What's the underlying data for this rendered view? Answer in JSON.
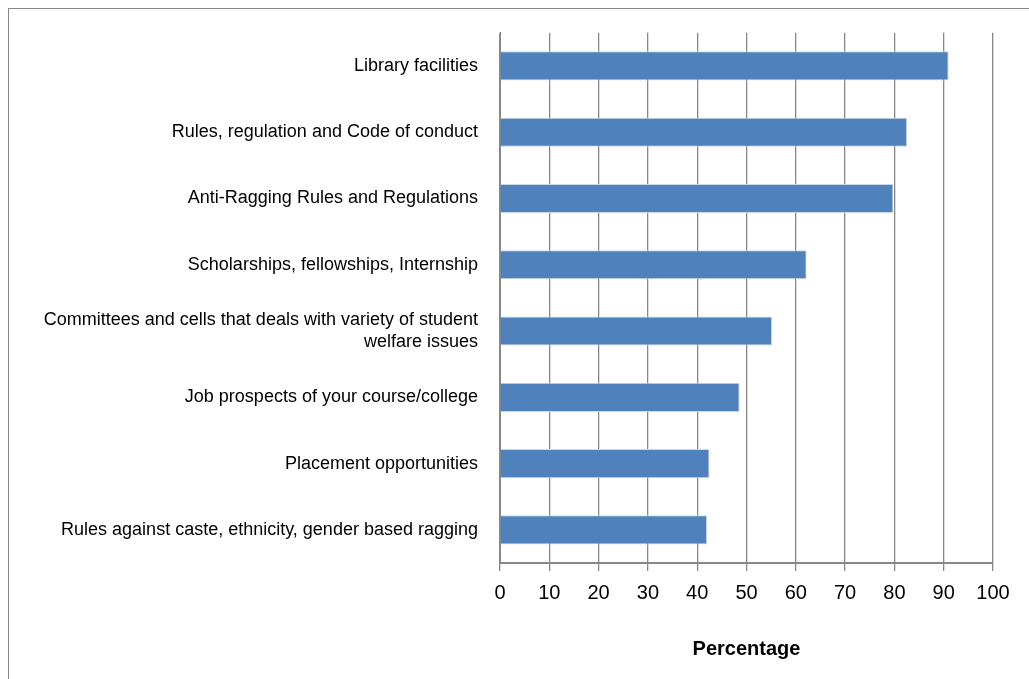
{
  "chart_data": {
    "type": "bar",
    "orientation": "horizontal",
    "xlabel": "Percentage",
    "categories": [
      "Library facilities",
      "Rules, regulation and Code of conduct",
      "Anti-Ragging Rules and Regulations",
      "Scholarships, fellowships, Internship",
      "Committees and cells that deals with variety of student welfare issues",
      "Job prospects of your course/college",
      "Placement opportunities",
      "Rules against caste, ethnicity, gender based ragging"
    ],
    "values": [
      91,
      82.6,
      79.8,
      62.2,
      55.2,
      48.6,
      42.5,
      42
    ],
    "color": "#4f81bd",
    "xlim": [
      0,
      100
    ],
    "xticks": [
      0,
      10,
      20,
      30,
      40,
      50,
      60,
      70,
      80,
      90,
      100
    ],
    "grid": "x",
    "legend": false
  }
}
